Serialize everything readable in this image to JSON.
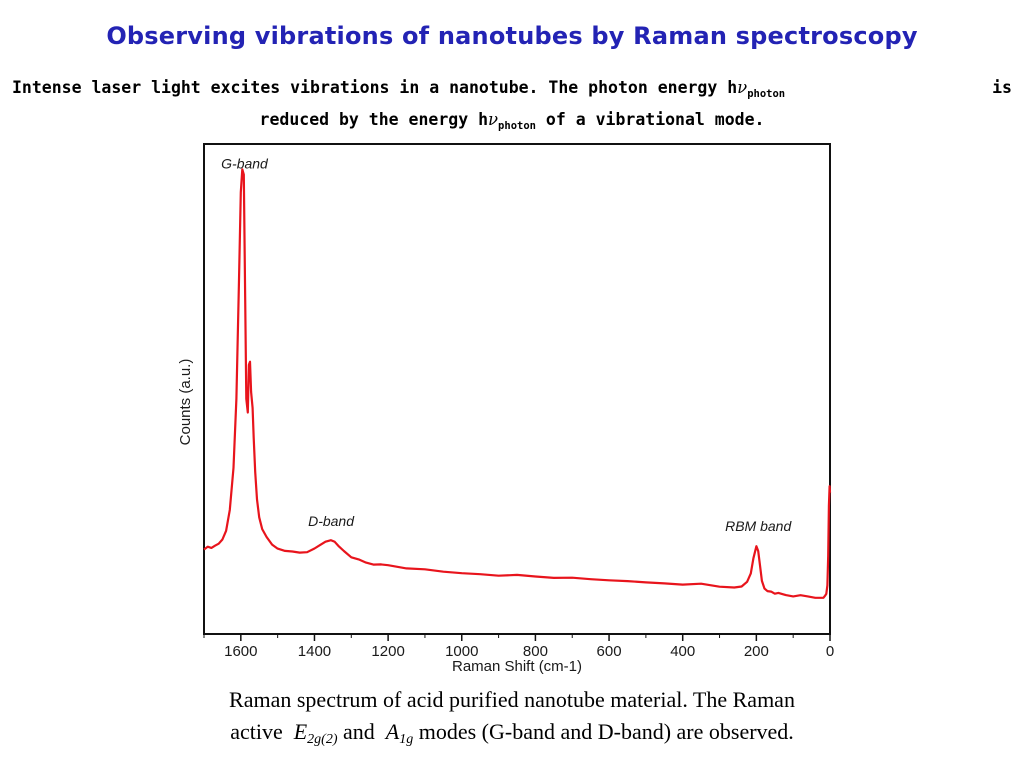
{
  "slide": {
    "title": "Observing vibrations of nanotubes by Raman spectroscopy",
    "intro": {
      "line1_text": "Intense laser light excites vibrations in a nanotube. The photon energy h",
      "nu_symbol": "ν",
      "line1_sub": "photon",
      "line1_tail": "is",
      "line2_text": "reduced by the energy h",
      "line2_sub": "photon",
      "line2_end": " of a vibrational mode."
    },
    "caption": {
      "line1": "Raman spectrum of acid purified nanotube material. The Raman",
      "active": "active",
      "mode1": "E",
      "mode1_sub": "2g(2)",
      "and": "and",
      "mode2": "A",
      "mode2_sub": "1g",
      "line2_end": "modes (G-band and D-band)  are observed."
    }
  },
  "chart_data": {
    "type": "line",
    "title": "",
    "xlabel": "Raman Shift (cm-1)",
    "ylabel": "Counts (a.u.)",
    "xlim": [
      1700,
      0
    ],
    "ylim": [
      0,
      100
    ],
    "x_reversed": true,
    "x_ticks": [
      1600,
      1400,
      1200,
      1000,
      800,
      600,
      400,
      200,
      0
    ],
    "y_ticks": [],
    "grid": false,
    "line_color": "#e8141c",
    "annotations": [
      {
        "text": "G-band",
        "x": 1590,
        "y": 95
      },
      {
        "text": "D-band",
        "x": 1355,
        "y": 22
      },
      {
        "text": "RBM band",
        "x": 195,
        "y": 21
      }
    ],
    "series": [
      {
        "values_x": [
          1700,
          1690,
          1680,
          1670,
          1660,
          1650,
          1640,
          1630,
          1620,
          1612,
          1605,
          1600,
          1596,
          1592,
          1588,
          1585,
          1581,
          1578,
          1575,
          1572,
          1568,
          1565,
          1561,
          1556,
          1550,
          1542,
          1530,
          1515,
          1500,
          1480,
          1460,
          1440,
          1420,
          1400,
          1385,
          1370,
          1355,
          1345,
          1335,
          1320,
          1300,
          1280,
          1260,
          1240,
          1220,
          1200,
          1150,
          1100,
          1050,
          1000,
          950,
          900,
          850,
          800,
          750,
          700,
          650,
          600,
          550,
          500,
          450,
          400,
          350,
          300,
          260,
          240,
          225,
          215,
          208,
          200,
          195,
          190,
          185,
          178,
          170,
          160,
          150,
          140,
          120,
          100,
          80,
          60,
          40,
          25,
          18,
          14,
          10,
          7,
          5,
          3,
          1,
          0
        ],
        "values_y": [
          17.5,
          17.6,
          17.8,
          18.0,
          18.5,
          19.3,
          21.0,
          25.5,
          34.0,
          48.0,
          72.0,
          90.0,
          95.0,
          93.5,
          68.0,
          48.0,
          45.0,
          55.0,
          55.5,
          49.5,
          46.0,
          40.0,
          33.0,
          27.5,
          24.0,
          21.5,
          19.8,
          18.5,
          17.6,
          17.0,
          16.6,
          16.5,
          16.8,
          17.5,
          18.3,
          18.8,
          18.9,
          18.6,
          18.0,
          16.8,
          15.6,
          15.0,
          14.6,
          14.3,
          14.1,
          13.9,
          13.5,
          13.2,
          12.9,
          12.6,
          12.3,
          12.1,
          11.9,
          11.7,
          11.5,
          11.3,
          11.2,
          11.1,
          10.9,
          10.7,
          10.5,
          10.3,
          10.1,
          9.9,
          9.7,
          9.9,
          10.6,
          12.5,
          15.5,
          18.0,
          17.0,
          14.0,
          11.0,
          9.5,
          8.9,
          8.6,
          8.4,
          8.3,
          8.1,
          7.9,
          7.8,
          7.7,
          7.6,
          7.5,
          7.6,
          7.8,
          8.2,
          10.0,
          16.0,
          26.0,
          30.0,
          29.0
        ]
      }
    ]
  }
}
